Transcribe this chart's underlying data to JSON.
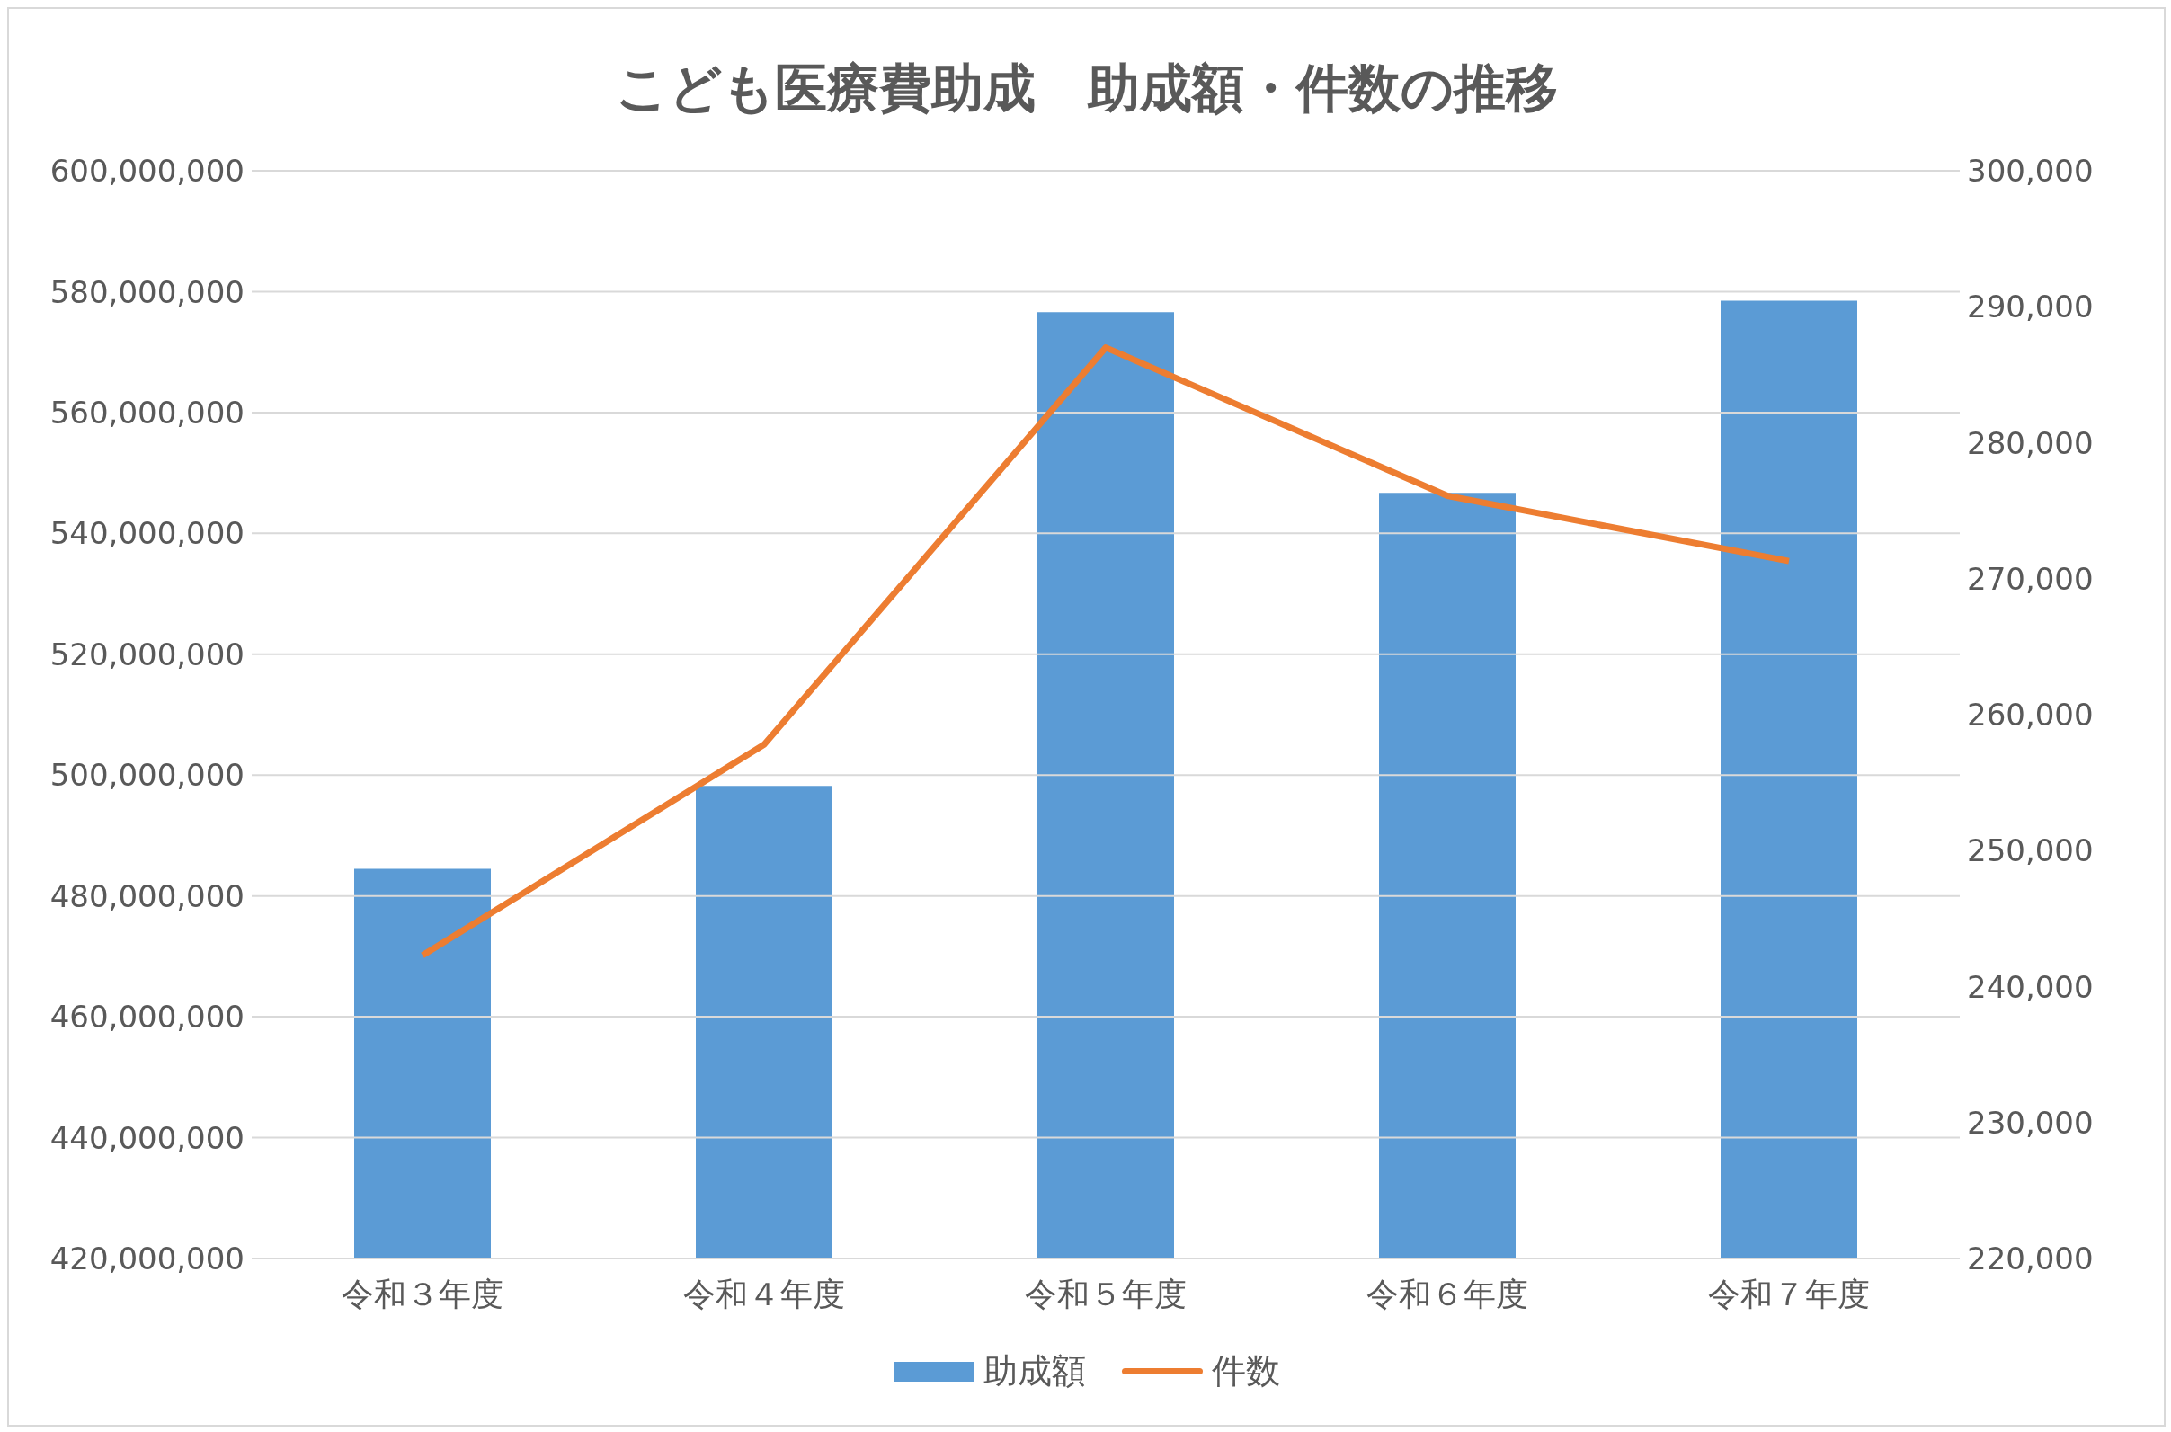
{
  "chart_data": {
    "type": "bar",
    "title": "こども医療費助成　助成額・件数の推移",
    "categories": [
      "令和３年度",
      "令和４年度",
      "令和５年度",
      "令和６年度",
      "令和７年度"
    ],
    "series": [
      {
        "name": "助成額",
        "color": "#5b9bd5",
        "values": [
          484500000,
          498200000,
          576600000,
          546700000,
          578500000
        ]
      },
      {
        "name": "件数",
        "type": "line",
        "axis": "y2",
        "color": "#ed7d31",
        "values": [
          242300,
          257800,
          287000,
          276100,
          271300
        ]
      }
    ],
    "ylim": [
      420000000,
      600000000
    ],
    "yticks": [
      {
        "value": 420000000,
        "label": "420,000,000"
      },
      {
        "value": 440000000,
        "label": "440,000,000"
      },
      {
        "value": 460000000,
        "label": "460,000,000"
      },
      {
        "value": 480000000,
        "label": "480,000,000"
      },
      {
        "value": 500000000,
        "label": "500,000,000"
      },
      {
        "value": 520000000,
        "label": "520,000,000"
      },
      {
        "value": 540000000,
        "label": "540,000,000"
      },
      {
        "value": 560000000,
        "label": "560,000,000"
      },
      {
        "value": 580000000,
        "label": "580,000,000"
      },
      {
        "value": 600000000,
        "label": "600,000,000"
      }
    ],
    "y2lim": [
      220000,
      300000
    ],
    "y2ticks": [
      {
        "value": 220000,
        "label": "220,000"
      },
      {
        "value": 230000,
        "label": "230,000"
      },
      {
        "value": 240000,
        "label": "240,000"
      },
      {
        "value": 250000,
        "label": "250,000"
      },
      {
        "value": 260000,
        "label": "260,000"
      },
      {
        "value": 270000,
        "label": "270,000"
      },
      {
        "value": 280000,
        "label": "280,000"
      },
      {
        "value": 290000,
        "label": "290,000"
      },
      {
        "value": 300000,
        "label": "300,000"
      }
    ],
    "grid": "y",
    "legend": "bottom",
    "marker": "none",
    "line_style": "solid"
  }
}
